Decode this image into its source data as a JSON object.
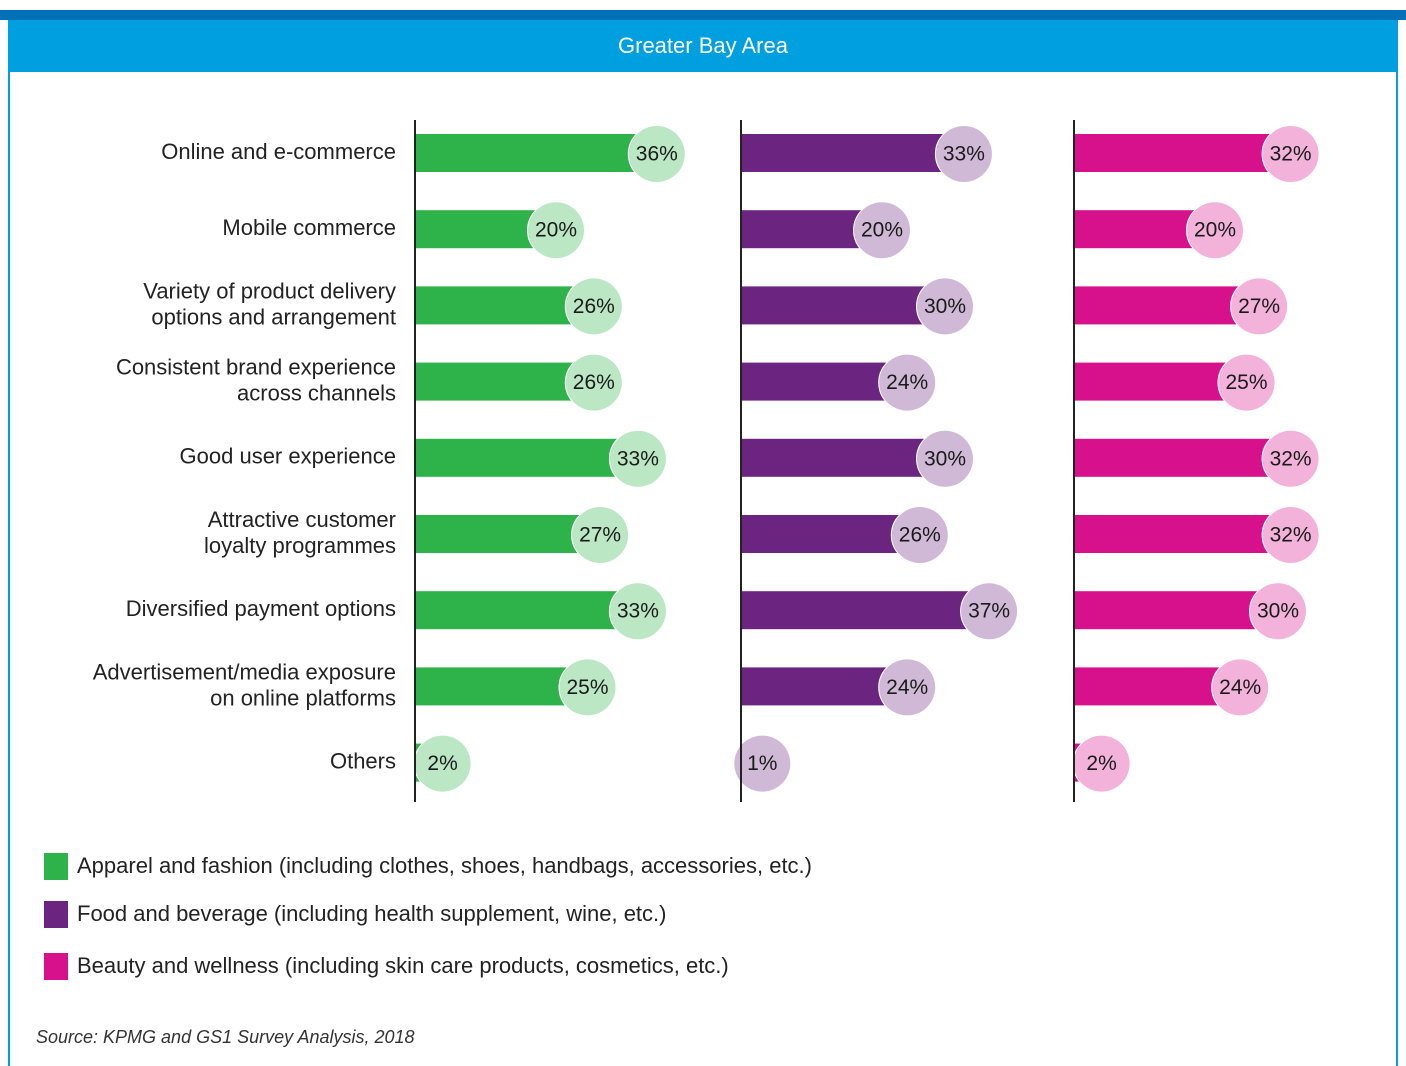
{
  "chart_data": {
    "type": "bar",
    "orientation": "horizontal",
    "title": "Greater Bay Area",
    "categories": [
      "Online and e-commerce",
      "Mobile commerce",
      "Variety of product delivery\noptions and arrangement",
      "Consistent brand experience\nacross channels",
      "Good user experience",
      "Attractive customer\nloyalty programmes",
      "Diversified payment options",
      "Advertisement/media exposure\non online platforms",
      "Others"
    ],
    "series": [
      {
        "name": "Apparel and fashion (including clothes, shoes, handbags, accessories, etc.)",
        "color": "#2db34a",
        "values": [
          36,
          20,
          26,
          26,
          33,
          27,
          33,
          25,
          2
        ],
        "value_labels": [
          "36%",
          "20%",
          "26%",
          "26%",
          "33%",
          "27%",
          "33%",
          "25%",
          "2%"
        ]
      },
      {
        "name": "Food and beverage (including health supplement, wine, etc.)",
        "color": "#6c2481",
        "values": [
          33,
          20,
          30,
          24,
          30,
          26,
          37,
          24,
          1
        ],
        "value_labels": [
          "33%",
          "20%",
          "30%",
          "24%",
          "30%",
          "26%",
          "37%",
          "24%",
          "1%"
        ]
      },
      {
        "name": "Beauty and wellness (including skin care products, cosmetics, etc.)",
        "color": "#d6118b",
        "values": [
          32,
          20,
          27,
          25,
          32,
          32,
          30,
          24,
          2
        ],
        "value_labels": [
          "32%",
          "20%",
          "27%",
          "25%",
          "32%",
          "32%",
          "30%",
          "24%",
          "2%"
        ]
      }
    ],
    "source": "Source: KPMG and GS1 Survey Analysis, 2018"
  }
}
